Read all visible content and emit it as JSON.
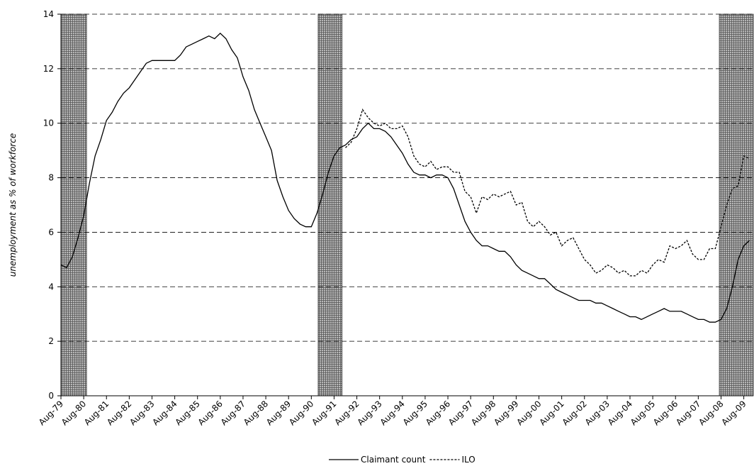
{
  "chart_data": {
    "type": "line",
    "y_label": "unemployment as % of workforce",
    "categories": [
      "Aug-79",
      null,
      null,
      null,
      "Aug-80",
      null,
      null,
      null,
      "Aug-81",
      null,
      null,
      null,
      "Aug-82",
      null,
      null,
      null,
      "Aug-83",
      null,
      null,
      null,
      "Aug-84",
      null,
      null,
      null,
      "Aug-85",
      null,
      null,
      null,
      "Aug-86",
      null,
      null,
      null,
      "Aug-87",
      null,
      null,
      null,
      "Aug-88",
      null,
      null,
      null,
      "Aug-89",
      null,
      null,
      null,
      "Aug-90",
      null,
      null,
      null,
      "Aug-91",
      null,
      null,
      null,
      "Aug-92",
      null,
      null,
      null,
      "Aug-93",
      null,
      null,
      null,
      "Aug-94",
      null,
      null,
      null,
      "Aug-95",
      null,
      null,
      null,
      "Aug-96",
      null,
      null,
      null,
      "Aug-97",
      null,
      null,
      null,
      "Aug-98",
      null,
      null,
      null,
      "Aug-99",
      null,
      null,
      null,
      "Aug-00",
      null,
      null,
      null,
      "Aug-01",
      null,
      null,
      null,
      "Aug-02",
      null,
      null,
      null,
      "Aug-03",
      null,
      null,
      null,
      "Aug-04",
      null,
      null,
      null,
      "Aug-05",
      null,
      null,
      null,
      "Aug-06",
      null,
      null,
      null,
      "Aug-07",
      null,
      null,
      null,
      "Aug-08",
      null,
      null,
      null,
      "Aug-09",
      null
    ],
    "series": [
      {
        "name": "Claimant count",
        "color": "#000000",
        "style": "solid",
        "values": [
          4.8,
          4.7,
          5.1,
          5.8,
          6.6,
          7.8,
          8.8,
          9.4,
          10.1,
          10.4,
          10.8,
          11.1,
          11.3,
          11.6,
          11.9,
          12.2,
          12.3,
          12.3,
          12.3,
          12.3,
          12.3,
          12.5,
          12.8,
          12.9,
          13.0,
          13.1,
          13.2,
          13.1,
          13.3,
          13.1,
          12.7,
          12.4,
          11.7,
          11.2,
          10.5,
          10.0,
          9.5,
          9.0,
          7.9,
          7.3,
          6.8,
          6.5,
          6.3,
          6.2,
          6.2,
          6.7,
          7.4,
          8.2,
          8.8,
          9.1,
          9.2,
          9.4,
          9.5,
          9.8,
          10.0,
          9.8,
          9.8,
          9.7,
          9.5,
          9.2,
          8.9,
          8.5,
          8.2,
          8.1,
          8.1,
          8.0,
          8.1,
          8.1,
          8.0,
          7.6,
          7.0,
          6.4,
          6.0,
          5.7,
          5.5,
          5.5,
          5.4,
          5.3,
          5.3,
          5.1,
          4.8,
          4.6,
          4.5,
          4.4,
          4.3,
          4.3,
          4.1,
          3.9,
          3.8,
          3.7,
          3.6,
          3.5,
          3.5,
          3.5,
          3.4,
          3.4,
          3.3,
          3.2,
          3.1,
          3.0,
          2.9,
          2.9,
          2.8,
          2.9,
          3.0,
          3.1,
          3.2,
          3.1,
          3.1,
          3.1,
          3.0,
          2.9,
          2.8,
          2.8,
          2.7,
          2.7,
          2.8,
          3.2,
          4.0,
          5.0,
          5.5,
          5.7
        ]
      },
      {
        "name": "ILO",
        "color": "#000000",
        "style": "dotted",
        "values": [
          null,
          null,
          null,
          null,
          null,
          null,
          null,
          null,
          null,
          null,
          null,
          null,
          null,
          null,
          null,
          null,
          null,
          null,
          null,
          null,
          null,
          null,
          null,
          null,
          null,
          null,
          null,
          null,
          null,
          null,
          null,
          null,
          null,
          null,
          null,
          null,
          null,
          null,
          null,
          null,
          null,
          null,
          null,
          null,
          null,
          null,
          null,
          null,
          null,
          null,
          9.1,
          9.3,
          9.8,
          10.5,
          10.2,
          10.0,
          9.9,
          10.0,
          9.8,
          9.8,
          9.9,
          9.5,
          8.8,
          8.5,
          8.4,
          8.6,
          8.3,
          8.4,
          8.4,
          8.2,
          8.2,
          7.5,
          7.3,
          6.7,
          7.3,
          7.2,
          7.4,
          7.3,
          7.4,
          7.5,
          7.0,
          7.1,
          6.4,
          6.2,
          6.4,
          6.2,
          5.9,
          6.0,
          5.5,
          5.7,
          5.8,
          5.4,
          5.0,
          4.8,
          4.5,
          4.6,
          4.8,
          4.7,
          4.5,
          4.6,
          4.4,
          4.4,
          4.6,
          4.5,
          4.8,
          5.0,
          4.9,
          5.5,
          5.4,
          5.5,
          5.7,
          5.2,
          5.0,
          5.0,
          5.4,
          5.4,
          6.2,
          7.0,
          7.6,
          7.7,
          8.8,
          8.7
        ]
      }
    ],
    "shaded": [
      [
        0,
        4.5
      ],
      [
        45.2,
        49.4
      ],
      [
        115.7,
        121.7
      ]
    ],
    "ylim": [
      0,
      14
    ],
    "yticks": [
      0,
      2,
      4,
      6,
      8,
      10,
      12,
      14
    ],
    "grid": true,
    "legend": "bottom"
  }
}
